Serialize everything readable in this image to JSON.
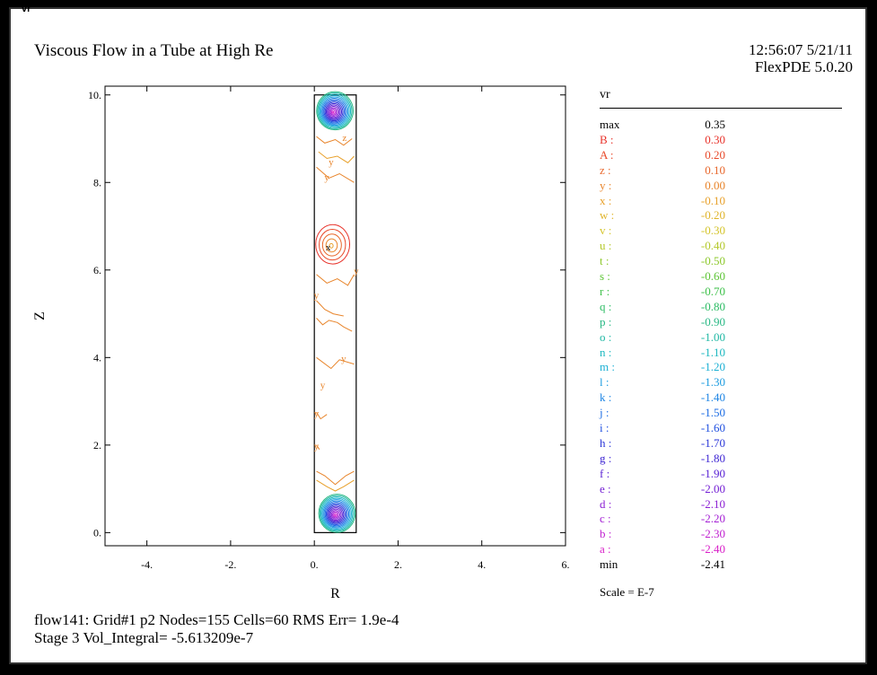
{
  "header": {
    "corner_tag": "vr",
    "title": "Viscous Flow in a Tube at High Re",
    "timestamp": "12:56:07 5/21/11",
    "version": "FlexPDE 5.0.20"
  },
  "footer": {
    "line1": "flow141:  Grid#1  p2  Nodes=155 Cells=60 RMS Err= 1.9e-4",
    "line2": "Stage 3  Vol_Integral= -5.613209e-7"
  },
  "legend": {
    "title": "vr",
    "scale": "Scale = E-7",
    "max": {
      "label": "max",
      "value": "0.35"
    },
    "min": {
      "label": "min",
      "value": "-2.41"
    },
    "levels": [
      {
        "label": "B :",
        "value": "0.30",
        "color": "#e8322a"
      },
      {
        "label": "A :",
        "value": "0.20",
        "color": "#e84a2a"
      },
      {
        "label": "z :",
        "value": "0.10",
        "color": "#e8662a"
      },
      {
        "label": "y :",
        "value": "0.00",
        "color": "#e8842a"
      },
      {
        "label": "x :",
        "value": "-0.10",
        "color": "#e8a02a"
      },
      {
        "label": "w :",
        "value": "-0.20",
        "color": "#e0b42a"
      },
      {
        "label": "v :",
        "value": "-0.30",
        "color": "#d4c42a"
      },
      {
        "label": "u :",
        "value": "-0.40",
        "color": "#b4c82a"
      },
      {
        "label": "t :",
        "value": "-0.50",
        "color": "#8cc82a"
      },
      {
        "label": "s :",
        "value": "-0.60",
        "color": "#5cc434"
      },
      {
        "label": "r :",
        "value": "-0.70",
        "color": "#3cc048"
      },
      {
        "label": "q :",
        "value": "-0.80",
        "color": "#2cbc64"
      },
      {
        "label": "p :",
        "value": "-0.90",
        "color": "#28b884"
      },
      {
        "label": "o :",
        "value": "-1.00",
        "color": "#20b8a4"
      },
      {
        "label": "n :",
        "value": "-1.10",
        "color": "#1cb8c0"
      },
      {
        "label": "m :",
        "value": "-1.20",
        "color": "#1cb0d4"
      },
      {
        "label": "l :",
        "value": "-1.30",
        "color": "#1c9ce0"
      },
      {
        "label": "k :",
        "value": "-1.40",
        "color": "#1c84e4"
      },
      {
        "label": "j :",
        "value": "-1.50",
        "color": "#1c6ce4"
      },
      {
        "label": "i :",
        "value": "-1.60",
        "color": "#2050e0"
      },
      {
        "label": "h :",
        "value": "-1.70",
        "color": "#2c38d8"
      },
      {
        "label": "g :",
        "value": "-1.80",
        "color": "#4028d4"
      },
      {
        "label": "f :",
        "value": "-1.90",
        "color": "#5820d4"
      },
      {
        "label": "e :",
        "value": "-2.00",
        "color": "#7420d4"
      },
      {
        "label": "d :",
        "value": "-2.10",
        "color": "#8c20d4"
      },
      {
        "label": "c :",
        "value": "-2.20",
        "color": "#a420d4"
      },
      {
        "label": "b :",
        "value": "-2.30",
        "color": "#c020d0"
      },
      {
        "label": "a :",
        "value": "-2.40",
        "color": "#d820c8"
      }
    ]
  },
  "chart_data": {
    "type": "contour",
    "variable": "vr",
    "xlabel": "R",
    "ylabel": "Z",
    "xlim": [
      -5,
      6
    ],
    "ylim": [
      -0.3,
      10.2
    ],
    "x_ticks": [
      "-4.",
      "-2.",
      "0.",
      "2.",
      "4.",
      "6."
    ],
    "x_tick_values": [
      -4,
      -2,
      0,
      2,
      4,
      6
    ],
    "y_ticks": [
      "0.",
      "2.",
      "4.",
      "6.",
      "8.",
      "10."
    ],
    "y_tick_values": [
      0,
      2,
      4,
      6,
      8,
      10
    ],
    "domain": {
      "r": [
        0,
        1
      ],
      "z": [
        0,
        10
      ]
    },
    "contour_features": [
      {
        "name": "top-vortex",
        "r": 0.45,
        "z": 9.6,
        "rx": 0.45,
        "rz": 0.45,
        "from_level": 12,
        "to_level": 27
      },
      {
        "name": "bottom-vortex",
        "r": 0.5,
        "z": 0.4,
        "rx": 0.45,
        "rz": 0.45,
        "from_level": 12,
        "to_level": 27
      },
      {
        "name": "middle-cell",
        "r": 0.4,
        "z": 6.55,
        "rx": 0.45,
        "rz": 0.5,
        "from_level": 0,
        "to_level": 4
      }
    ],
    "wavy_contours": [
      {
        "r": [
          0.05,
          0.25,
          0.5,
          0.7,
          0.9
        ],
        "z": [
          9.05,
          8.9,
          8.98,
          8.85,
          9.0
        ],
        "color": "#e8842a"
      },
      {
        "r": [
          0.1,
          0.3,
          0.55,
          0.8,
          0.95
        ],
        "z": [
          8.7,
          8.55,
          8.6,
          8.45,
          8.6
        ],
        "color": "#e8a02a"
      },
      {
        "r": [
          0.05,
          0.35,
          0.6,
          0.95
        ],
        "z": [
          8.35,
          8.1,
          8.2,
          8.0
        ],
        "color": "#e8842a"
      },
      {
        "r": [
          0.05,
          0.3,
          0.55,
          0.8,
          0.95
        ],
        "z": [
          5.9,
          5.7,
          5.8,
          5.65,
          5.9
        ],
        "color": "#e8842a"
      },
      {
        "r": [
          0.05,
          0.25,
          0.45,
          0.7
        ],
        "z": [
          5.3,
          5.1,
          5.0,
          4.95
        ],
        "color": "#e8842a"
      },
      {
        "r": [
          0.05,
          0.2,
          0.35,
          0.55,
          0.7,
          0.9
        ],
        "z": [
          4.9,
          4.75,
          4.85,
          4.8,
          4.7,
          4.6
        ],
        "color": "#e8842a"
      },
      {
        "r": [
          0.05,
          0.4,
          0.6,
          0.95
        ],
        "z": [
          4.0,
          3.75,
          3.95,
          3.85
        ],
        "color": "#e8842a"
      },
      {
        "r": [
          0.05,
          0.15,
          0.3
        ],
        "z": [
          2.75,
          2.6,
          2.7
        ],
        "color": "#e8842a"
      },
      {
        "r": [
          0.05,
          0.12
        ],
        "z": [
          2.0,
          1.9
        ],
        "color": "#e8842a"
      },
      {
        "r": [
          0.05,
          0.25,
          0.5,
          0.75,
          0.95
        ],
        "z": [
          1.4,
          1.3,
          1.1,
          1.3,
          1.4
        ],
        "color": "#e8842a"
      },
      {
        "r": [
          0.05,
          0.3,
          0.5,
          0.7,
          0.95
        ],
        "z": [
          1.2,
          1.05,
          0.95,
          1.05,
          1.2
        ],
        "color": "#e8a02a"
      }
    ],
    "curve_labels": [
      {
        "text": "z",
        "r": 0.72,
        "z": 8.95
      },
      {
        "text": "y",
        "r": 0.4,
        "z": 8.4
      },
      {
        "text": "y",
        "r": 0.3,
        "z": 8.05
      },
      {
        "text": "y",
        "r": 1.0,
        "z": 5.9
      },
      {
        "text": "y",
        "r": 0.05,
        "z": 5.35
      },
      {
        "text": "y",
        "r": 0.7,
        "z": 3.9
      },
      {
        "text": "y",
        "r": 0.2,
        "z": 3.3
      },
      {
        "text": "y",
        "r": 0.05,
        "z": 2.65
      },
      {
        "text": "y",
        "r": 0.05,
        "z": 1.9
      },
      {
        "text": "x",
        "r": 0.33,
        "z": 6.45
      }
    ]
  }
}
